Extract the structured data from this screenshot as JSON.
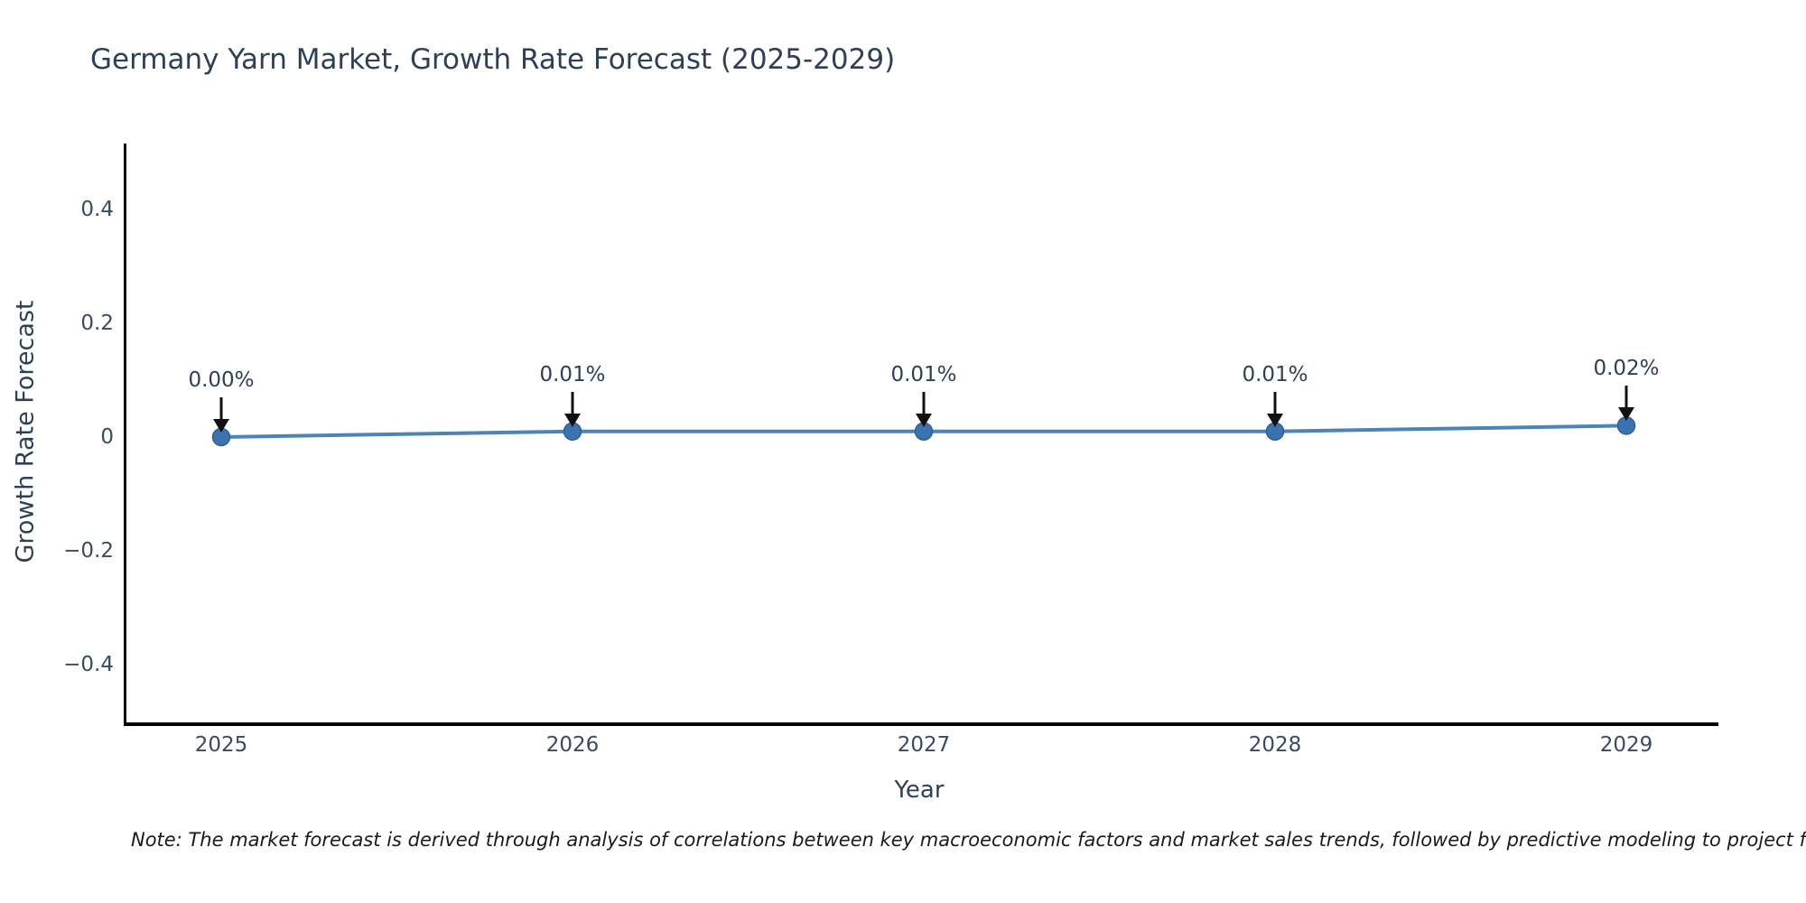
{
  "note": "Note: The market forecast is derived through analysis of correlations between key macroeconomic factors and market sales trends, followed by predictive modeling to project future sales",
  "chart_data": {
    "type": "line",
    "title": "Germany Yarn Market, Growth Rate Forecast (2025-2029)",
    "xlabel": "Year",
    "ylabel": "Growth Rate Forecast",
    "x": [
      2025,
      2026,
      2027,
      2028,
      2029
    ],
    "series": [
      {
        "name": "Growth Rate Forecast",
        "values": [
          0.0,
          0.01,
          0.01,
          0.01,
          0.02
        ]
      }
    ],
    "point_labels": [
      "0.00%",
      "0.01%",
      "0.01%",
      "0.01%",
      "0.02%"
    ],
    "ytick_values": [
      0.4,
      0.2,
      0,
      -0.2,
      -0.4
    ],
    "ytick_labels": [
      "0.4",
      "0.2",
      "0",
      "−0.2",
      "−0.4"
    ],
    "ylim": [
      -0.51,
      0.52
    ],
    "grid": false,
    "legend": false,
    "annotation_arrows": "down",
    "colors": {
      "line": "#4d84b8",
      "marker_fill": "#3b73ae",
      "marker_edge": "#2e6098",
      "heading_text": "#2f3f58",
      "tick_text": "#3b4a63",
      "spine": "#000000",
      "arrow": "#111111",
      "note_text": "#1a1a1a",
      "background": "#ffffff"
    }
  }
}
